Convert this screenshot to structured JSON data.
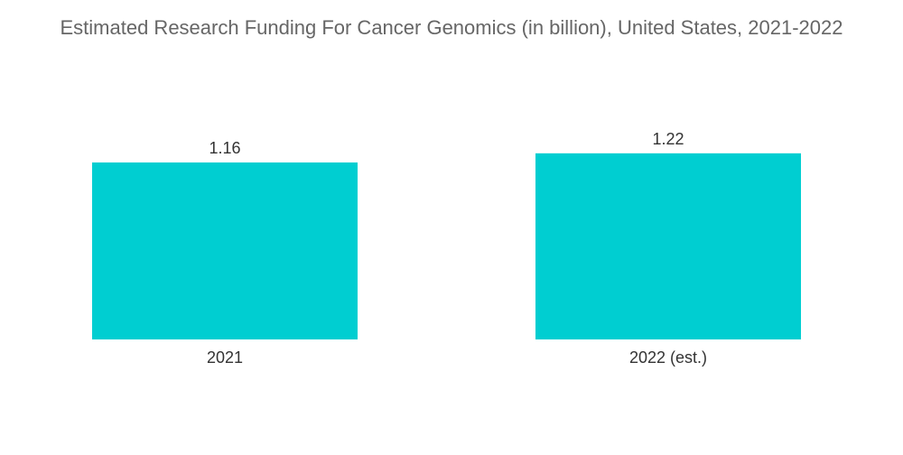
{
  "chart_data": {
    "type": "bar",
    "title": "Estimated Research Funding For Cancer Genomics (in billion), United States, 2021-2022",
    "categories": [
      "2021",
      "2022 (est.)"
    ],
    "values": [
      1.16,
      1.22
    ],
    "value_labels": [
      "1.16",
      "1.22"
    ],
    "xlabel": "",
    "ylabel": "",
    "bar_color": "#00CED1",
    "grid": false,
    "legend": "none"
  }
}
